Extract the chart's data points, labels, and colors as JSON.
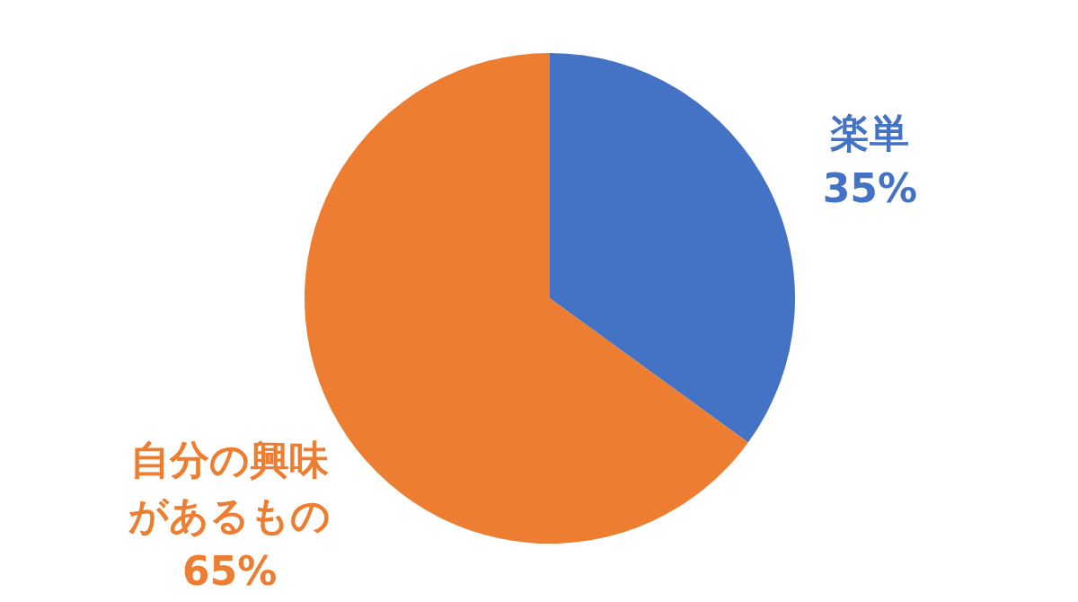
{
  "chart_data": {
    "type": "pie",
    "categories": [
      "楽単",
      "自分の興味があるもの"
    ],
    "values": [
      35,
      65
    ],
    "colors": [
      "#4472c4",
      "#ed7d31"
    ],
    "value_labels": [
      "35%",
      "65%"
    ]
  }
}
